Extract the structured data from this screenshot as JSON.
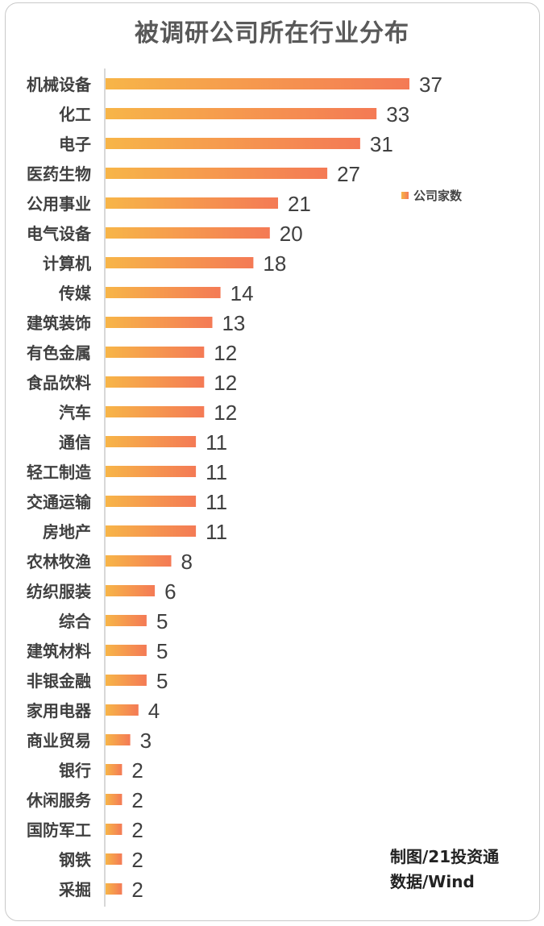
{
  "chart_data": {
    "type": "bar",
    "orientation": "horizontal",
    "title": "被调研公司所在行业分布",
    "categories": [
      "机械设备",
      "化工",
      "电子",
      "医药生物",
      "公用事业",
      "电气设备",
      "计算机",
      "传媒",
      "建筑装饰",
      "有色金属",
      "食品饮料",
      "汽车",
      "通信",
      "轻工制造",
      "交通运输",
      "房地产",
      "农林牧渔",
      "纺织服装",
      "综合",
      "建筑材料",
      "非银金融",
      "家用电器",
      "商业贸易",
      "银行",
      "休闲服务",
      "国防军工",
      "钢铁",
      "采掘"
    ],
    "series": [
      {
        "name": "公司家数",
        "values": [
          37,
          33,
          31,
          27,
          21,
          20,
          18,
          14,
          13,
          12,
          12,
          12,
          11,
          11,
          11,
          11,
          8,
          6,
          5,
          5,
          5,
          4,
          3,
          2,
          2,
          2,
          2,
          2
        ]
      }
    ],
    "xlim": [
      0,
      37
    ],
    "grid": false,
    "legend_position": "right",
    "colors": {
      "bar_start": "#f7b548",
      "bar_end": "#f47a55",
      "label": "#404040"
    }
  },
  "footer": {
    "line1": "制图/21投资通",
    "line2": "数据/Wind"
  }
}
